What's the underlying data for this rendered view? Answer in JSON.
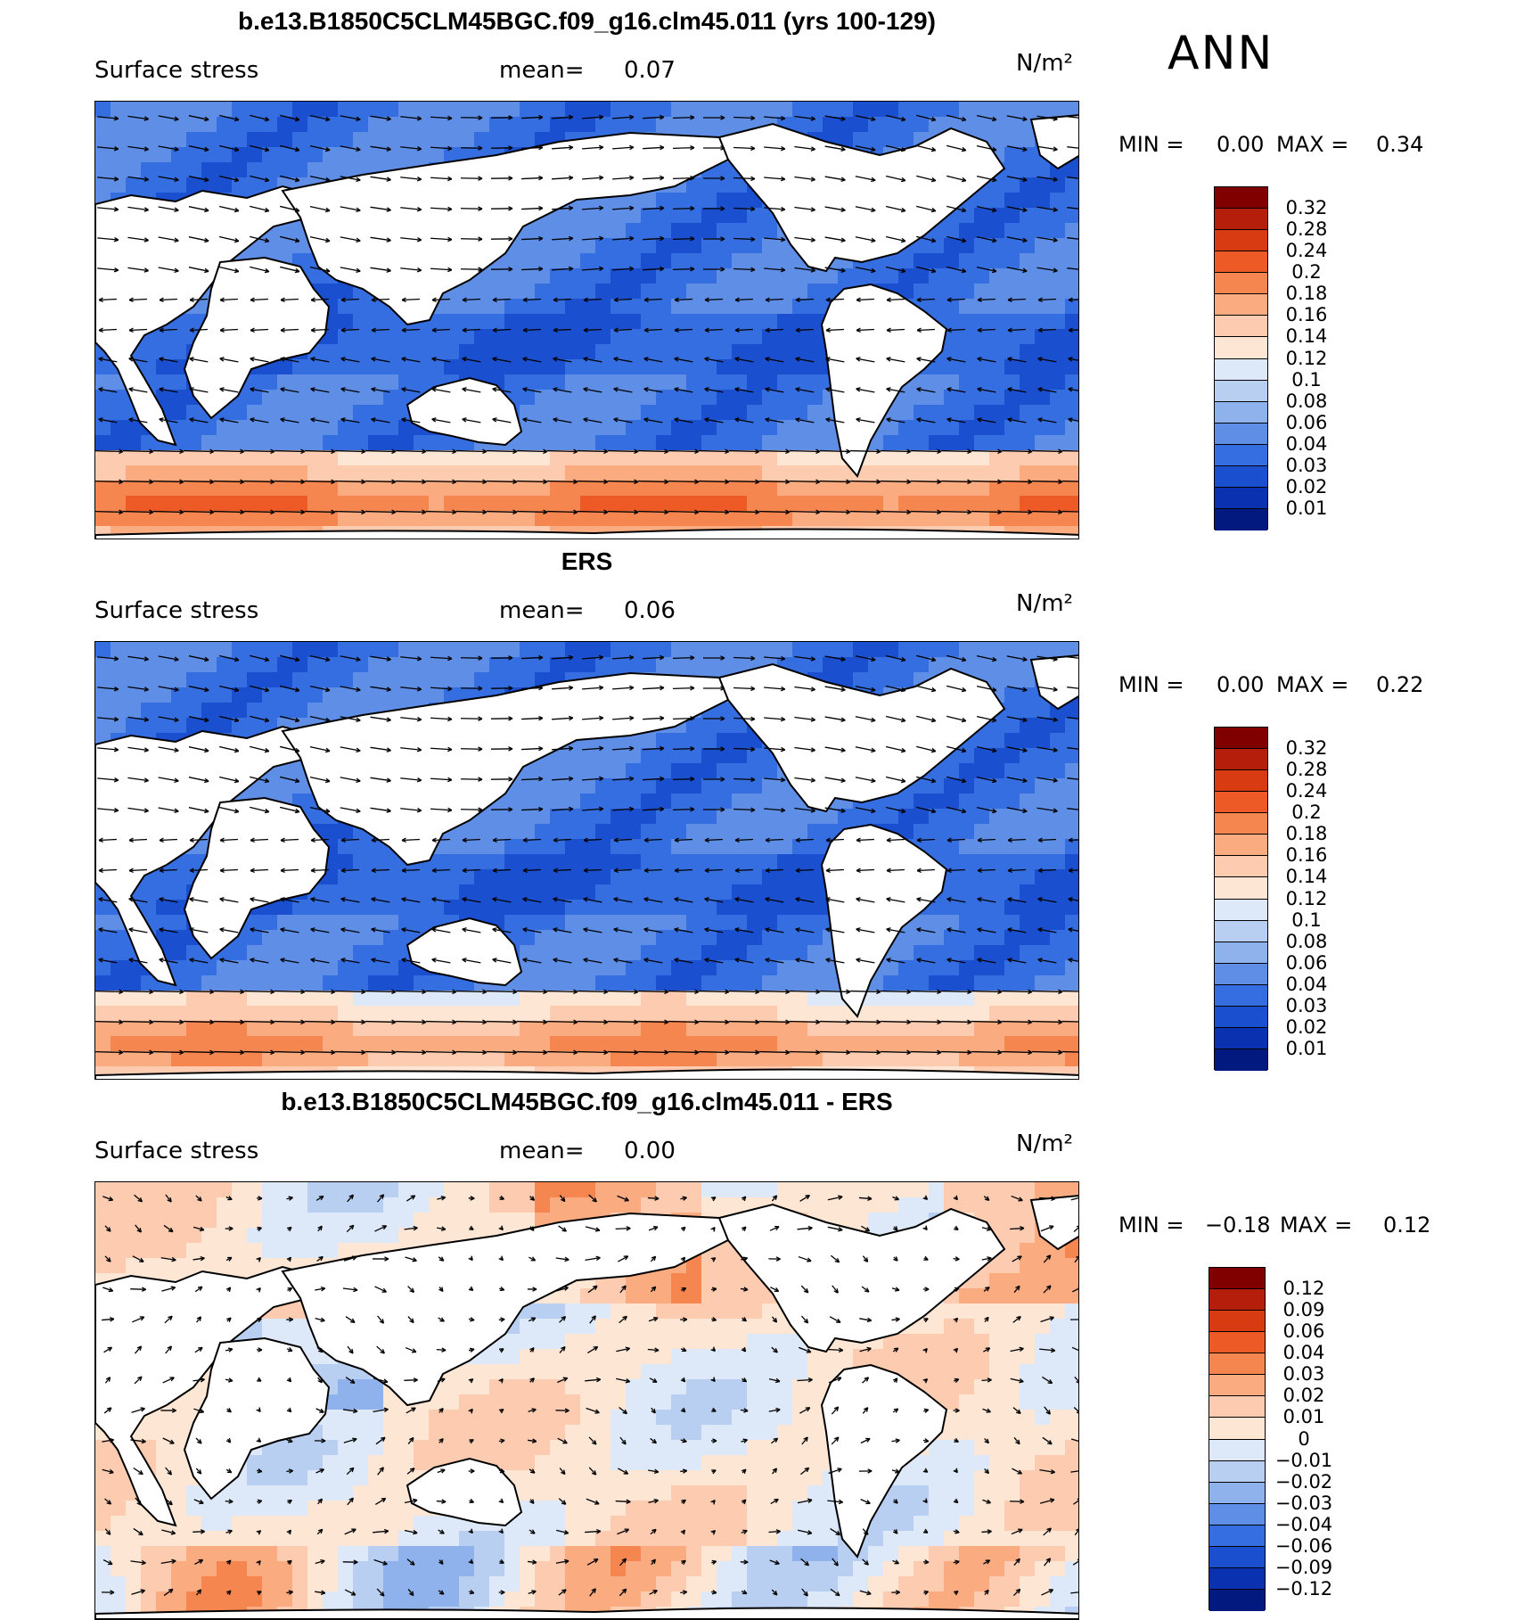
{
  "season": "ANN",
  "panels": [
    {
      "title": "b.e13.B1850C5CLM45BGC.f09_g16.clm45.011 (yrs 100-129)",
      "variable": "Surface stress",
      "mean_label": "mean=",
      "mean_value": "0.07",
      "units": "N/m²",
      "min_label": "MIN =",
      "min_value": "0.00",
      "max_label": "MAX =",
      "max_value": "0.34",
      "colorbar_labels": [
        "0.32",
        "0.28",
        "0.24",
        "0.2",
        "0.18",
        "0.16",
        "0.14",
        "0.12",
        "0.1",
        "0.08",
        "0.06",
        "0.04",
        "0.03",
        "0.02",
        "0.01"
      ],
      "colorbar_colors": [
        "#800000",
        "#b51e0a",
        "#d83a12",
        "#ee5a26",
        "#f6864f",
        "#fbab80",
        "#fdcbb0",
        "#fde6d4",
        "#dde9f8",
        "#b9cff2",
        "#8fb2ec",
        "#5f8ee6",
        "#356ee0",
        "#1a4fd0",
        "#0a32b0",
        "#021a80"
      ],
      "field_kind": "model"
    },
    {
      "title": "ERS",
      "variable": "Surface stress",
      "mean_label": "mean=",
      "mean_value": "0.06",
      "units": "N/m²",
      "min_label": "MIN =",
      "min_value": "0.00",
      "max_label": "MAX =",
      "max_value": "0.22",
      "colorbar_labels": [
        "0.32",
        "0.28",
        "0.24",
        "0.2",
        "0.18",
        "0.16",
        "0.14",
        "0.12",
        "0.1",
        "0.08",
        "0.06",
        "0.04",
        "0.03",
        "0.02",
        "0.01"
      ],
      "colorbar_colors": [
        "#800000",
        "#b51e0a",
        "#d83a12",
        "#ee5a26",
        "#f6864f",
        "#fbab80",
        "#fdcbb0",
        "#fde6d4",
        "#dde9f8",
        "#b9cff2",
        "#8fb2ec",
        "#5f8ee6",
        "#356ee0",
        "#1a4fd0",
        "#0a32b0",
        "#021a80"
      ],
      "field_kind": "obs"
    },
    {
      "title": "b.e13.B1850C5CLM45BGC.f09_g16.clm45.011 - ERS",
      "variable": "Surface stress",
      "mean_label": "mean=",
      "mean_value": "0.00",
      "units": "N/m²",
      "min_label": "MIN =",
      "min_value": "−0.18",
      "max_label": "MAX =",
      "max_value": "0.12",
      "colorbar_labels": [
        "0.12",
        "0.09",
        "0.06",
        "0.04",
        "0.03",
        "0.02",
        "0.01",
        "0",
        "−0.01",
        "−0.02",
        "−0.03",
        "−0.04",
        "−0.06",
        "−0.09",
        "−0.12"
      ],
      "colorbar_colors": [
        "#800000",
        "#b51e0a",
        "#d83a12",
        "#ee5a26",
        "#f6864f",
        "#fbab80",
        "#fdcbb0",
        "#fde6d4",
        "#dde9f8",
        "#b9cff2",
        "#8fb2ec",
        "#5f8ee6",
        "#356ee0",
        "#1a4fd0",
        "#0a32b0",
        "#021a80"
      ],
      "field_kind": "diff"
    }
  ]
}
